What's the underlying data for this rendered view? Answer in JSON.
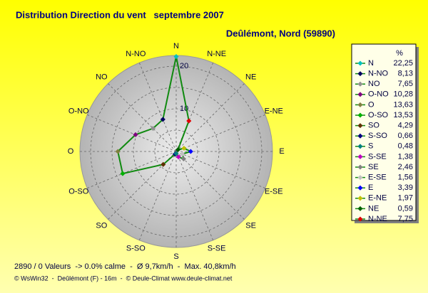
{
  "chart_data": {
    "type": "radar",
    "title": "Distribution Direction du vent   septembre 2007",
    "subtitle": "Deûlémont, Nord (59890)",
    "direction": "counterclockwise",
    "categories": [
      "N",
      "N-NO",
      "NO",
      "O-NO",
      "O",
      "O-SO",
      "SO",
      "S-SO",
      "S",
      "S-SE",
      "SE",
      "E-SE",
      "E",
      "E-NE",
      "NE",
      "N-NE"
    ],
    "series": [
      {
        "color": "#108a10",
        "values": [
          22.25,
          8.13,
          7.65,
          10.28,
          13.63,
          13.53,
          4.29,
          0.66,
          0.48,
          1.38,
          2.46,
          1.56,
          3.39,
          1.97,
          0.59,
          7.75
        ],
        "value_labels": [
          "22,25",
          "8,13",
          "7,65",
          "10,28",
          "13,63",
          "13,53",
          "4,29",
          "0,66",
          "0,48",
          "1,38",
          "2,46",
          "1,56",
          "3,39",
          "1,97",
          "0,59",
          "7,75"
        ],
        "point_colors": [
          "#00c0c0",
          "#000060",
          "#909090",
          "#800080",
          "#808040",
          "#00b000",
          "#603000",
          "#000080",
          "#008080",
          "#c000c0",
          "#808080",
          "#c0c0c0",
          "#0000ff",
          "#c0c000",
          "#006000",
          "#e00000"
        ]
      }
    ],
    "rlim": [
      0,
      22.5
    ],
    "rticks": [
      10,
      20
    ],
    "rminor": [
      5,
      15
    ],
    "grid": true,
    "legend_title": "%",
    "legend_position": "right",
    "annotations": [
      "2890 / 0 Valeurs  -> 0.0% calme  -  Ø 9,7km/h  -  Max. 40,8km/h",
      "© WsWin32  -  Deûlémont (F) - 16m  -  © Deule-Climat www.deule-climat.net"
    ]
  }
}
